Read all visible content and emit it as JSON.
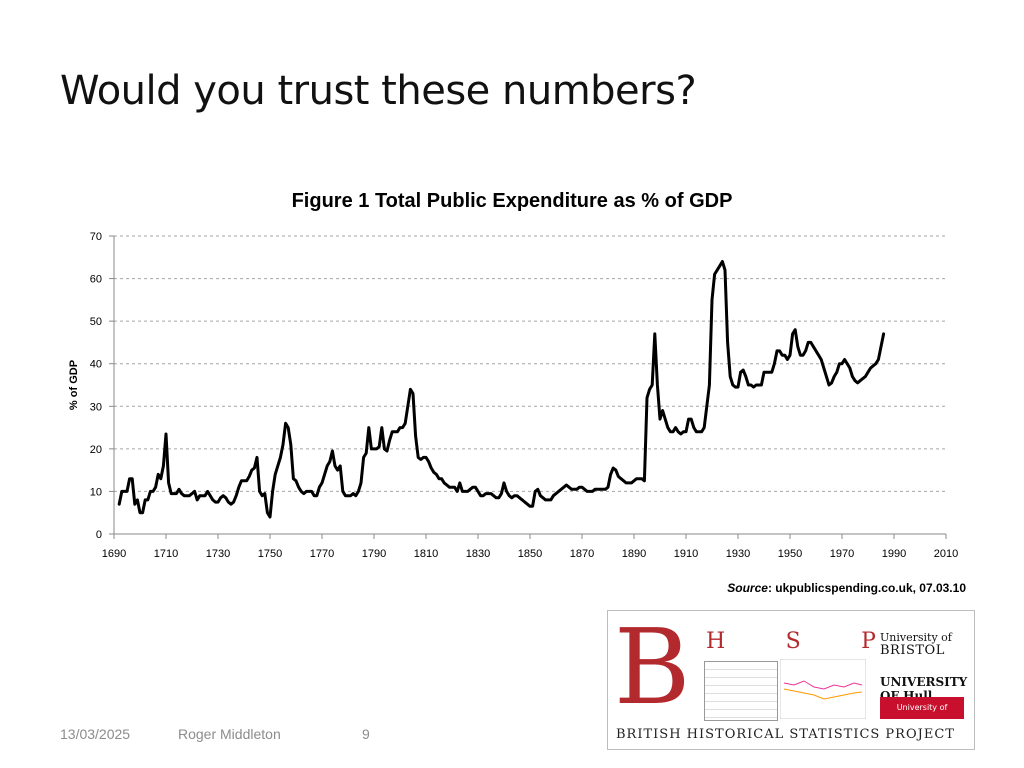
{
  "slide": {
    "title": "Would you trust these numbers?"
  },
  "source": {
    "label": "Source",
    "text": ": ukpublicspending.co.uk, 07.03.10"
  },
  "footer": {
    "date": "13/03/2025",
    "author": "Roger Middleton",
    "page": "9"
  },
  "logo": {
    "big_letter": "B",
    "letters": [
      "H",
      "S",
      "P"
    ],
    "uni_bristol_1": "University of",
    "uni_bristol_2": "BRISTOL",
    "uni_hull": "UNIVERSITY OF Hull",
    "uni_herts": "University of Hertfordshire UH",
    "caption": "BRITISH HISTORICAL STATISTICS PROJECT"
  },
  "chart_data": {
    "type": "line",
    "title": "Figure 1 Total Public Expenditure as % of GDP",
    "xlabel": "",
    "ylabel": "% of GDP",
    "xlim": [
      1690,
      2010
    ],
    "ylim": [
      0,
      70
    ],
    "x_ticks": [
      1690,
      1710,
      1730,
      1750,
      1770,
      1790,
      1810,
      1830,
      1850,
      1870,
      1890,
      1910,
      1930,
      1950,
      1970,
      1990,
      2010
    ],
    "y_ticks": [
      0,
      10,
      20,
      30,
      40,
      50,
      60,
      70
    ],
    "grid": "horizontal dashed",
    "legend": "none",
    "line_color": "#000000",
    "series": [
      {
        "points": [
          [
            1692,
            7
          ],
          [
            1693,
            10
          ],
          [
            1694,
            10
          ],
          [
            1695,
            10
          ],
          [
            1696,
            13
          ],
          [
            1697,
            13
          ],
          [
            1698,
            7
          ],
          [
            1699,
            8
          ],
          [
            1700,
            5
          ],
          [
            1701,
            5
          ],
          [
            1702,
            8
          ],
          [
            1703,
            8
          ],
          [
            1704,
            10
          ],
          [
            1705,
            10
          ],
          [
            1706,
            11
          ],
          [
            1707,
            14
          ],
          [
            1708,
            13
          ],
          [
            1709,
            16
          ],
          [
            1710,
            23.5
          ],
          [
            1711,
            12
          ],
          [
            1712,
            9.5
          ],
          [
            1713,
            9.5
          ],
          [
            1714,
            9.5
          ],
          [
            1715,
            10.5
          ],
          [
            1716,
            9.5
          ],
          [
            1717,
            9
          ],
          [
            1718,
            9
          ],
          [
            1719,
            9
          ],
          [
            1720,
            9.5
          ],
          [
            1721,
            10
          ],
          [
            1722,
            8
          ],
          [
            1723,
            9
          ],
          [
            1724,
            9
          ],
          [
            1725,
            9
          ],
          [
            1726,
            10
          ],
          [
            1727,
            9
          ],
          [
            1728,
            8
          ],
          [
            1729,
            7.5
          ],
          [
            1730,
            7.5
          ],
          [
            1731,
            8.5
          ],
          [
            1732,
            9
          ],
          [
            1733,
            8.5
          ],
          [
            1734,
            7.5
          ],
          [
            1735,
            7
          ],
          [
            1736,
            7.5
          ],
          [
            1737,
            9
          ],
          [
            1738,
            11
          ],
          [
            1739,
            12.5
          ],
          [
            1740,
            12.5
          ],
          [
            1741,
            12.5
          ],
          [
            1742,
            13.5
          ],
          [
            1743,
            15
          ],
          [
            1744,
            15.5
          ],
          [
            1745,
            18
          ],
          [
            1746,
            10
          ],
          [
            1747,
            9
          ],
          [
            1748,
            9.5
          ],
          [
            1749,
            5
          ],
          [
            1750,
            4
          ],
          [
            1751,
            10
          ],
          [
            1752,
            14
          ],
          [
            1753,
            16
          ],
          [
            1754,
            18
          ],
          [
            1755,
            21
          ],
          [
            1756,
            26
          ],
          [
            1757,
            25
          ],
          [
            1758,
            21
          ],
          [
            1759,
            13
          ],
          [
            1760,
            12.5
          ],
          [
            1761,
            11
          ],
          [
            1762,
            10
          ],
          [
            1763,
            9.5
          ],
          [
            1764,
            10
          ],
          [
            1765,
            10
          ],
          [
            1766,
            10
          ],
          [
            1767,
            9
          ],
          [
            1768,
            9
          ],
          [
            1769,
            11
          ],
          [
            1770,
            12
          ],
          [
            1771,
            14
          ],
          [
            1772,
            16
          ],
          [
            1773,
            17
          ],
          [
            1774,
            19.5
          ],
          [
            1775,
            16
          ],
          [
            1776,
            15
          ],
          [
            1777,
            16
          ],
          [
            1778,
            10
          ],
          [
            1779,
            9
          ],
          [
            1780,
            9
          ],
          [
            1781,
            9
          ],
          [
            1782,
            9.5
          ],
          [
            1783,
            9
          ],
          [
            1784,
            10
          ],
          [
            1785,
            12
          ],
          [
            1786,
            18
          ],
          [
            1787,
            19
          ],
          [
            1788,
            25
          ],
          [
            1789,
            20
          ],
          [
            1790,
            20
          ],
          [
            1791,
            20
          ],
          [
            1792,
            20.5
          ],
          [
            1793,
            25
          ],
          [
            1794,
            20
          ],
          [
            1795,
            19.5
          ],
          [
            1796,
            22
          ],
          [
            1797,
            24
          ],
          [
            1798,
            24
          ],
          [
            1799,
            24
          ],
          [
            1800,
            25
          ],
          [
            1801,
            25
          ],
          [
            1802,
            26
          ],
          [
            1803,
            30
          ],
          [
            1804,
            34
          ],
          [
            1805,
            33
          ],
          [
            1806,
            23
          ],
          [
            1807,
            18
          ],
          [
            1808,
            17.5
          ],
          [
            1809,
            18
          ],
          [
            1810,
            18
          ],
          [
            1811,
            17
          ],
          [
            1812,
            15.5
          ],
          [
            1813,
            14.5
          ],
          [
            1814,
            14
          ],
          [
            1815,
            13
          ],
          [
            1816,
            13
          ],
          [
            1817,
            12
          ],
          [
            1818,
            11.5
          ],
          [
            1819,
            11
          ],
          [
            1820,
            11
          ],
          [
            1821,
            11
          ],
          [
            1822,
            10
          ],
          [
            1823,
            12
          ],
          [
            1824,
            10
          ],
          [
            1825,
            10
          ],
          [
            1826,
            10
          ],
          [
            1827,
            10.5
          ],
          [
            1828,
            11
          ],
          [
            1829,
            11
          ],
          [
            1830,
            10
          ],
          [
            1831,
            9
          ],
          [
            1832,
            9
          ],
          [
            1833,
            9.5
          ],
          [
            1834,
            9.5
          ],
          [
            1835,
            9.5
          ],
          [
            1836,
            9
          ],
          [
            1837,
            8.5
          ],
          [
            1838,
            8.5
          ],
          [
            1839,
            9.5
          ],
          [
            1840,
            12
          ],
          [
            1841,
            10
          ],
          [
            1842,
            9
          ],
          [
            1843,
            8.5
          ],
          [
            1844,
            9
          ],
          [
            1845,
            9
          ],
          [
            1846,
            8.5
          ],
          [
            1847,
            8
          ],
          [
            1848,
            7.5
          ],
          [
            1849,
            7
          ],
          [
            1850,
            6.5
          ],
          [
            1851,
            6.5
          ],
          [
            1852,
            10
          ],
          [
            1853,
            10.5
          ],
          [
            1854,
            9
          ],
          [
            1855,
            8.5
          ],
          [
            1856,
            8
          ],
          [
            1857,
            8
          ],
          [
            1858,
            8
          ],
          [
            1859,
            9
          ],
          [
            1860,
            9.5
          ],
          [
            1861,
            10
          ],
          [
            1862,
            10.5
          ],
          [
            1863,
            11
          ],
          [
            1864,
            11.5
          ],
          [
            1865,
            11
          ],
          [
            1866,
            10.5
          ],
          [
            1867,
            10.5
          ],
          [
            1868,
            10.5
          ],
          [
            1869,
            11
          ],
          [
            1870,
            11
          ],
          [
            1871,
            10.5
          ],
          [
            1872,
            10
          ],
          [
            1873,
            10
          ],
          [
            1874,
            10
          ],
          [
            1875,
            10.5
          ],
          [
            1876,
            10.5
          ],
          [
            1877,
            10.5
          ],
          [
            1878,
            10.5
          ],
          [
            1879,
            10.5
          ],
          [
            1880,
            11
          ],
          [
            1881,
            14
          ],
          [
            1882,
            15.5
          ],
          [
            1883,
            15
          ],
          [
            1884,
            13.5
          ],
          [
            1885,
            13
          ],
          [
            1886,
            12.5
          ],
          [
            1887,
            12
          ],
          [
            1888,
            12
          ],
          [
            1889,
            12
          ],
          [
            1890,
            12.5
          ],
          [
            1891,
            13
          ],
          [
            1892,
            13
          ],
          [
            1893,
            13
          ],
          [
            1894,
            12.5
          ],
          [
            1895,
            32
          ],
          [
            1896,
            34
          ],
          [
            1897,
            35
          ],
          [
            1898,
            47
          ],
          [
            1899,
            35
          ],
          [
            1900,
            27
          ],
          [
            1901,
            29
          ],
          [
            1902,
            27
          ],
          [
            1903,
            25
          ],
          [
            1904,
            24
          ],
          [
            1905,
            24
          ],
          [
            1906,
            25
          ],
          [
            1907,
            24
          ],
          [
            1908,
            23.5
          ],
          [
            1909,
            24
          ],
          [
            1910,
            24
          ],
          [
            1911,
            27
          ],
          [
            1912,
            27
          ],
          [
            1913,
            25
          ],
          [
            1914,
            24
          ],
          [
            1915,
            24
          ],
          [
            1916,
            24
          ],
          [
            1917,
            25
          ],
          [
            1918,
            30
          ],
          [
            1919,
            35
          ],
          [
            1920,
            55
          ],
          [
            1921,
            61
          ],
          [
            1922,
            62
          ],
          [
            1923,
            63
          ],
          [
            1924,
            64
          ],
          [
            1925,
            62
          ],
          [
            1926,
            45
          ],
          [
            1927,
            37
          ],
          [
            1928,
            35
          ],
          [
            1929,
            34.5
          ],
          [
            1930,
            34.5
          ],
          [
            1931,
            38
          ],
          [
            1932,
            38.5
          ],
          [
            1933,
            37
          ],
          [
            1934,
            35
          ],
          [
            1935,
            35
          ],
          [
            1936,
            34.5
          ],
          [
            1937,
            35
          ],
          [
            1938,
            35
          ],
          [
            1939,
            35
          ],
          [
            1940,
            38
          ],
          [
            1941,
            38
          ],
          [
            1942,
            38
          ],
          [
            1943,
            38
          ],
          [
            1944,
            40
          ],
          [
            1945,
            43
          ],
          [
            1946,
            43
          ],
          [
            1947,
            42
          ],
          [
            1948,
            42
          ],
          [
            1949,
            41
          ],
          [
            1950,
            42
          ],
          [
            1951,
            47
          ],
          [
            1952,
            48
          ],
          [
            1953,
            44
          ],
          [
            1954,
            42
          ],
          [
            1955,
            42
          ],
          [
            1956,
            43
          ],
          [
            1957,
            45
          ],
          [
            1958,
            45
          ],
          [
            1959,
            44
          ],
          [
            1960,
            43
          ],
          [
            1961,
            42
          ],
          [
            1962,
            41
          ],
          [
            1963,
            39
          ],
          [
            1964,
            37
          ],
          [
            1965,
            35
          ],
          [
            1966,
            35.5
          ],
          [
            1967,
            37
          ],
          [
            1968,
            38
          ],
          [
            1969,
            40
          ],
          [
            1970,
            40
          ],
          [
            1971,
            41
          ],
          [
            1972,
            40
          ],
          [
            1973,
            39
          ],
          [
            1974,
            37
          ],
          [
            1975,
            36
          ],
          [
            1976,
            35.5
          ],
          [
            1977,
            36
          ],
          [
            1978,
            36.5
          ],
          [
            1979,
            37
          ],
          [
            1980,
            38
          ],
          [
            1981,
            39
          ],
          [
            1982,
            39.5
          ],
          [
            1983,
            40
          ],
          [
            1984,
            41
          ],
          [
            1985,
            44
          ],
          [
            1986,
            47
          ]
        ],
        "note_x_scale": "points after 1880 are plotted on the axis as printed (1890 tick = position of 1890)"
      }
    ]
  }
}
